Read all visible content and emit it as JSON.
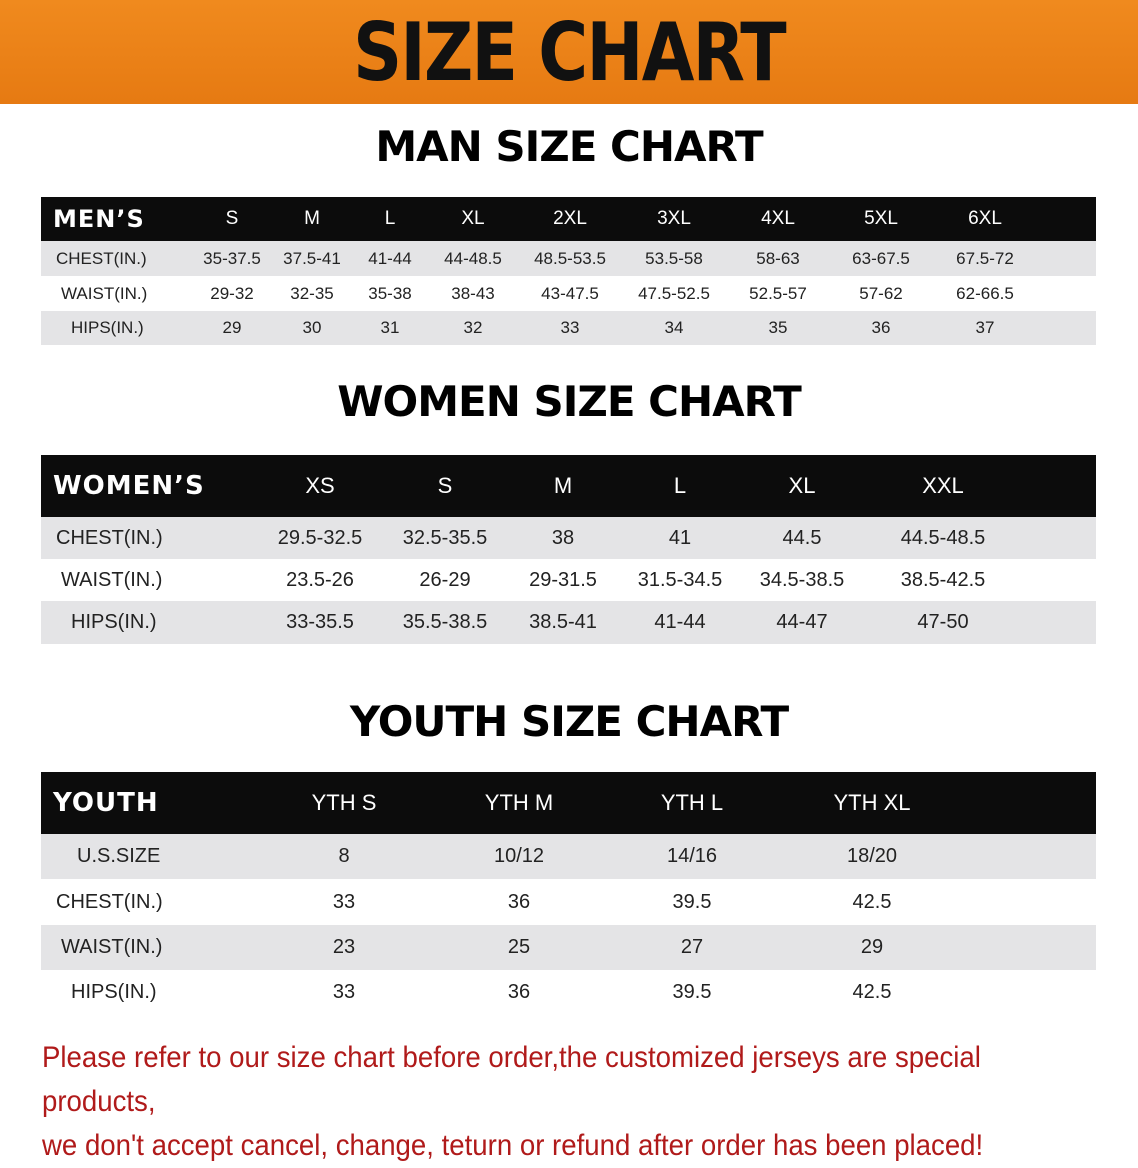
{
  "banner": {
    "title": "SIZE CHART",
    "color": "#ec8218"
  },
  "men": {
    "title": "MAN SIZE CHART",
    "header": "MEN’S",
    "sizes": [
      "S",
      "M",
      "L",
      "XL",
      "2XL",
      "3XL",
      "4XL",
      "5XL",
      "6XL"
    ],
    "rows": [
      {
        "label": "CHEST(IN.)",
        "values": [
          "35-37.5",
          "37.5-41",
          "41-44",
          "44-48.5",
          "48.5-53.5",
          "53.5-58",
          "58-63",
          "63-67.5",
          "67.5-72"
        ]
      },
      {
        "label": "WAIST(IN.)",
        "values": [
          "29-32",
          "32-35",
          "35-38",
          "38-43",
          "43-47.5",
          "47.5-52.5",
          "52.5-57",
          "57-62",
          "62-66.5"
        ]
      },
      {
        "label": "HIPS(IN.)",
        "values": [
          "29",
          "30",
          "31",
          "32",
          "33",
          "34",
          "35",
          "36",
          "37"
        ]
      }
    ]
  },
  "women": {
    "title": "WOMEN SIZE CHART",
    "header": "WOMEN’S",
    "sizes": [
      "XS",
      "S",
      "M",
      "L",
      "XL",
      "XXL"
    ],
    "rows": [
      {
        "label": "CHEST(IN.)",
        "values": [
          "29.5-32.5",
          "32.5-35.5",
          "38",
          "41",
          "44.5",
          "44.5-48.5"
        ]
      },
      {
        "label": "WAIST(IN.)",
        "values": [
          "23.5-26",
          "26-29",
          "29-31.5",
          "31.5-34.5",
          "34.5-38.5",
          "38.5-42.5"
        ]
      },
      {
        "label": "HIPS(IN.)",
        "values": [
          "33-35.5",
          "35.5-38.5",
          "38.5-41",
          "41-44",
          "44-47",
          "47-50"
        ]
      }
    ]
  },
  "youth": {
    "title": "YOUTH SIZE CHART",
    "header": "YOUTH",
    "sizes": [
      "YTH S",
      "YTH M",
      "YTH L",
      "YTH XL"
    ],
    "rows": [
      {
        "label": "U.S.SIZE",
        "values": [
          "8",
          "10/12",
          "14/16",
          "18/20"
        ]
      },
      {
        "label": "CHEST(IN.)",
        "values": [
          "33",
          "36",
          "39.5",
          "42.5"
        ]
      },
      {
        "label": "WAIST(IN.)",
        "values": [
          "23",
          "25",
          "27",
          "29"
        ]
      },
      {
        "label": "HIPS(IN.)",
        "values": [
          "33",
          "36",
          "39.5",
          "42.5"
        ]
      }
    ]
  },
  "notice": {
    "line1": "Please refer to our size chart before order,the customized jerseys are special products,",
    "line2": "we don't accept cancel, change, teturn or refund after order has been placed!",
    "color": "#b01a1a"
  }
}
